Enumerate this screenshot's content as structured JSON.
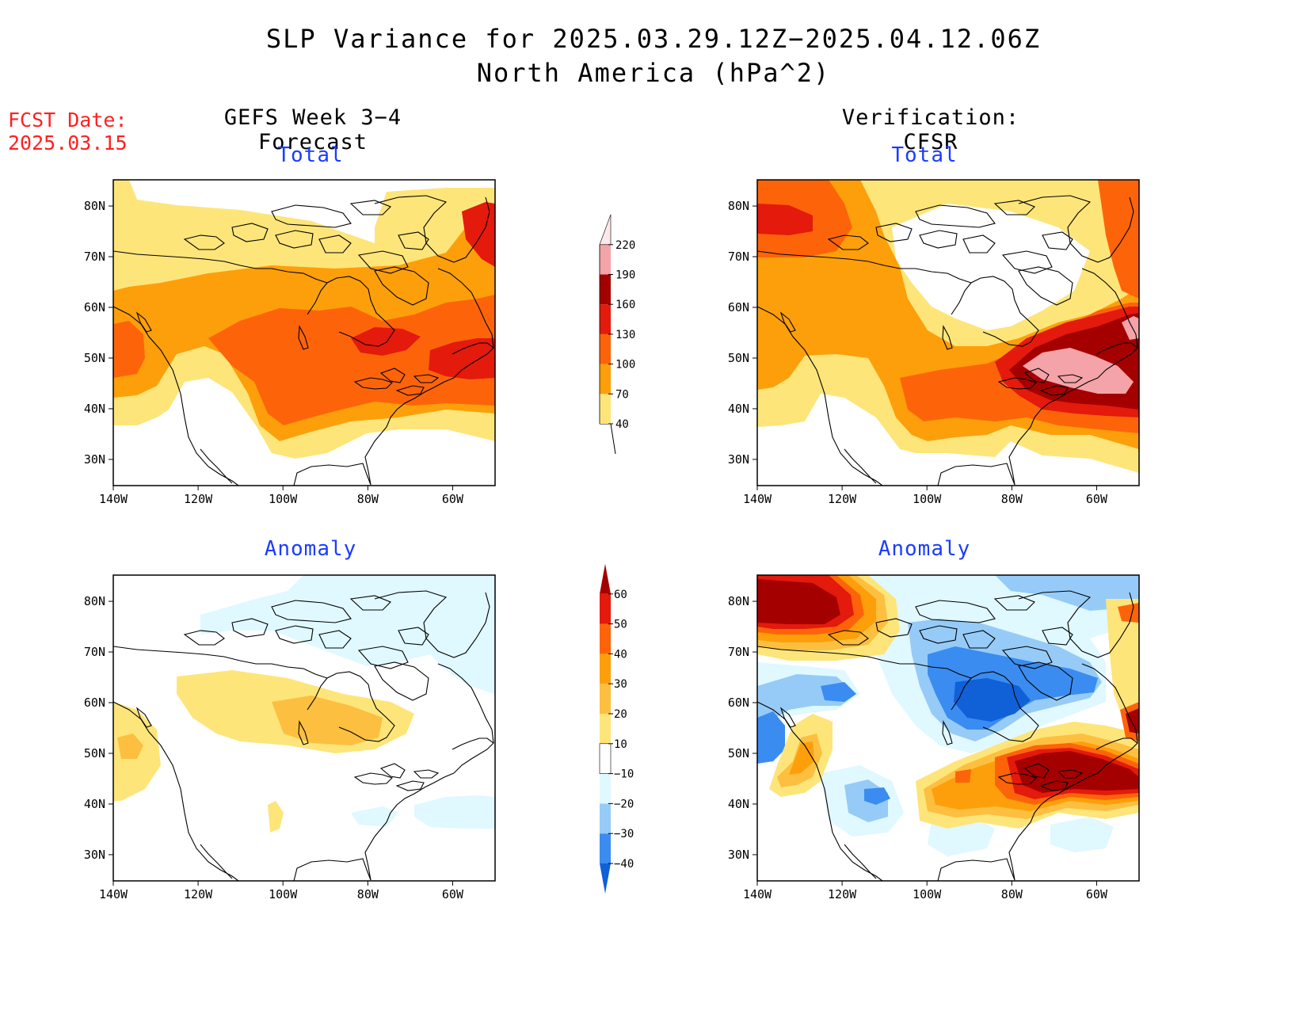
{
  "title": "SLP Variance for 2025.03.29.12Z−2025.04.12.06Z",
  "subtitle": "North America (hPa^2)",
  "fcst_label": "FCST Date:",
  "fcst_date": "2025.03.15",
  "left_header": "GEFS Week 3−4 Forecast",
  "right_header": "Verification: CFSR",
  "panel_titles": {
    "total": "Total",
    "anomaly": "Anomaly"
  },
  "axes": {
    "lon_labels": [
      "140W",
      "120W",
      "100W",
      "80W",
      "60W"
    ],
    "lat_labels": [
      "80N",
      "70N",
      "60N",
      "50N",
      "40N",
      "30N"
    ]
  },
  "colors": {
    "total_levels": [
      "#fde57a",
      "#fd9f0a",
      "#fd640a",
      "#e31a0c",
      "#a50000",
      "#f4a3a8",
      "#fde8e9"
    ],
    "anomaly_levels": [
      "#1060d8",
      "#3a8cf0",
      "#96cbf8",
      "#e0f8ff",
      "#ffffff",
      "#fde57a",
      "#fdbf40",
      "#fd9f0a",
      "#fd640a",
      "#e31a0c",
      "#a50000"
    ],
    "title_blue": "#1a3cff",
    "fcst_red": "#ff2020"
  },
  "total_colorbar": {
    "ticks": [
      "40",
      "70",
      "100",
      "130",
      "160",
      "190",
      "220"
    ]
  },
  "anomaly_colorbar": {
    "ticks": [
      "−40",
      "−30",
      "−20",
      "−10",
      "10",
      "20",
      "30",
      "40",
      "50",
      "60"
    ]
  }
}
